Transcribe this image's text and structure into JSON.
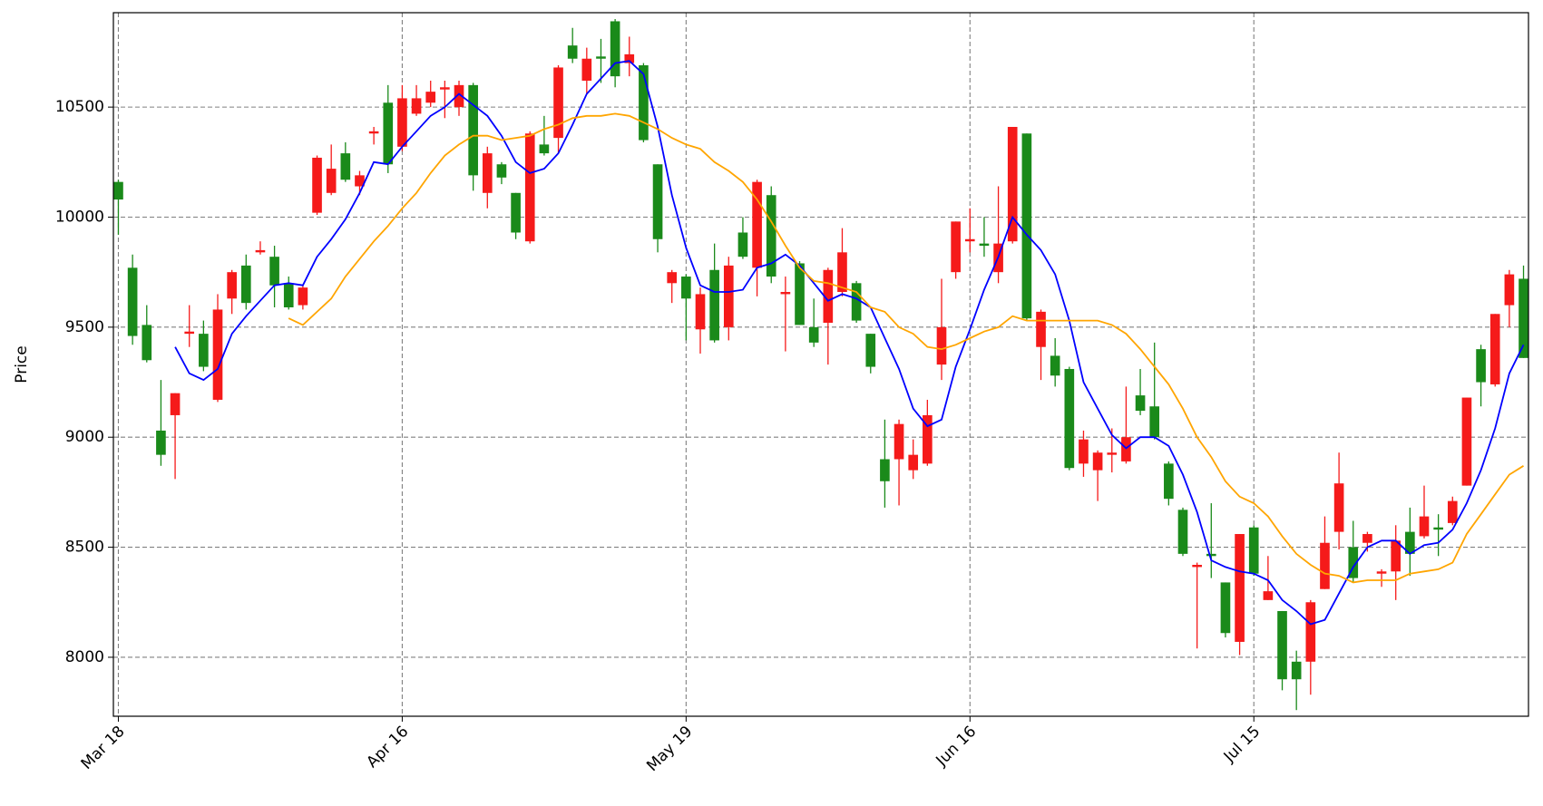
{
  "chart_data": {
    "type": "candlestick",
    "ylabel": "Price",
    "categories": [
      "Mar 18",
      null,
      null,
      null,
      null,
      null,
      null,
      null,
      null,
      null,
      null,
      null,
      null,
      null,
      null,
      null,
      null,
      null,
      null,
      null,
      "Apr 16",
      null,
      null,
      null,
      null,
      null,
      null,
      null,
      null,
      null,
      null,
      null,
      null,
      null,
      null,
      null,
      null,
      null,
      null,
      null,
      "May 19",
      null,
      null,
      null,
      null,
      null,
      null,
      null,
      null,
      null,
      null,
      null,
      null,
      null,
      null,
      null,
      null,
      null,
      null,
      null,
      "Jun 16",
      null,
      null,
      null,
      null,
      null,
      null,
      null,
      null,
      null,
      null,
      null,
      null,
      null,
      null,
      null,
      null,
      null,
      null,
      null,
      "Jul 15",
      null,
      null,
      null,
      null,
      null,
      null,
      null,
      null,
      null,
      null,
      null,
      null,
      null,
      null,
      null,
      null,
      null,
      null,
      null
    ],
    "open": [
      10160,
      9770,
      9510,
      9030,
      9100,
      9470,
      9470,
      9170,
      9630,
      9780,
      9840,
      9820,
      9700,
      9600,
      10020,
      10110,
      10290,
      10140,
      10380,
      10520,
      10320,
      10470,
      10520,
      10580,
      10500,
      10600,
      10110,
      10240,
      10110,
      9890,
      10330,
      10360,
      10780,
      10620,
      10730,
      10890,
      10700,
      10690,
      10240,
      9700,
      9730,
      9490,
      9760,
      9500,
      9930,
      9770,
      10100,
      9650,
      9790,
      9500,
      9520,
      9660,
      9700,
      9470,
      8900,
      8900,
      8850,
      8880,
      9330,
      9750,
      9890,
      9880,
      9750,
      9890,
      10380,
      9410,
      9370,
      9310,
      8880,
      8850,
      8920,
      8890,
      9190,
      9140,
      8880,
      8670,
      8410,
      8470,
      8340,
      8070,
      8590,
      8260,
      8210,
      7980,
      7980,
      8310,
      8570,
      8500,
      8520,
      8380,
      8390,
      8570,
      8550,
      8590,
      8610,
      8780,
      9400,
      9240,
      9600,
      9720
    ],
    "high": [
      10170,
      9830,
      9600,
      9260,
      9200,
      9600,
      9530,
      9650,
      9760,
      9830,
      9890,
      9870,
      9730,
      9690,
      10280,
      10330,
      10340,
      10210,
      10410,
      10600,
      10600,
      10600,
      10620,
      10620,
      10620,
      10610,
      10320,
      10250,
      10110,
      10390,
      10460,
      10690,
      10860,
      10770,
      10810,
      10900,
      10820,
      10700,
      10240,
      9760,
      9740,
      9680,
      9880,
      9820,
      10000,
      10170,
      10140,
      9730,
      9800,
      9630,
      9770,
      9950,
      9710,
      9470,
      9080,
      9080,
      8990,
      9170,
      9720,
      9980,
      10040,
      10000,
      10140,
      10410,
      10380,
      9580,
      9450,
      9320,
      9030,
      8940,
      9040,
      9230,
      9310,
      9430,
      8890,
      8680,
      8430,
      8700,
      8340,
      8560,
      8600,
      8460,
      8210,
      8030,
      8260,
      8640,
      8930,
      8620,
      8570,
      8400,
      8600,
      8680,
      8780,
      8650,
      8730,
      9180,
      9420,
      9560,
      9760,
      9780
    ],
    "low": [
      9920,
      9420,
      9340,
      8870,
      8810,
      9410,
      9300,
      9160,
      9560,
      9580,
      9830,
      9590,
      9580,
      9580,
      10010,
      10100,
      10160,
      10100,
      10330,
      10200,
      10300,
      10460,
      10500,
      10450,
      10460,
      10120,
      10040,
      10150,
      9900,
      9880,
      10280,
      10290,
      10700,
      10560,
      10610,
      10590,
      10640,
      10340,
      9840,
      9610,
      9440,
      9380,
      9430,
      9440,
      9810,
      9640,
      9700,
      9390,
      9510,
      9410,
      9330,
      9640,
      9520,
      9290,
      8680,
      8690,
      8810,
      8870,
      9260,
      9720,
      9840,
      9820,
      9700,
      9880,
      9530,
      9260,
      9230,
      8850,
      8820,
      8710,
      8840,
      8880,
      9100,
      8990,
      8690,
      8460,
      8040,
      8360,
      8090,
      8010,
      8370,
      8260,
      7850,
      7760,
      7830,
      8310,
      8490,
      8340,
      8480,
      8320,
      8260,
      8370,
      8540,
      8460,
      8600,
      8780,
      9140,
      9230,
      9500,
      9360
    ],
    "close": [
      10080,
      9460,
      9350,
      8920,
      9200,
      9480,
      9320,
      9580,
      9750,
      9610,
      9850,
      9690,
      9590,
      9680,
      10270,
      10220,
      10170,
      10190,
      10390,
      10240,
      10540,
      10540,
      10570,
      10590,
      10600,
      10190,
      10290,
      10180,
      9930,
      10380,
      10290,
      10680,
      10720,
      10720,
      10720,
      10640,
      10740,
      10350,
      9900,
      9750,
      9630,
      9650,
      9440,
      9780,
      9820,
      10160,
      9730,
      9660,
      9510,
      9430,
      9760,
      9840,
      9530,
      9320,
      8800,
      9060,
      8920,
      9100,
      9500,
      9980,
      9900,
      9870,
      9880,
      10410,
      9540,
      9570,
      9280,
      8860,
      8990,
      8930,
      8930,
      9000,
      9120,
      9000,
      8720,
      8470,
      8420,
      8460,
      8110,
      8560,
      8380,
      8300,
      7900,
      7900,
      8250,
      8520,
      8790,
      8360,
      8560,
      8390,
      8530,
      8470,
      8640,
      8580,
      8710,
      9180,
      9250,
      9560,
      9740,
      9360
    ],
    "up_color": "#f51a1a",
    "down_color": "#1a8a1a",
    "series": [
      {
        "color": "#0000ff",
        "values": [
          null,
          null,
          null,
          null,
          9410,
          9290,
          9260,
          9310,
          9470,
          9550,
          9620,
          9690,
          9700,
          9690,
          9820,
          9900,
          9990,
          10110,
          10250,
          10240,
          10320,
          10390,
          10460,
          10500,
          10560,
          10510,
          10460,
          10370,
          10250,
          10200,
          10220,
          10290,
          10420,
          10560,
          10630,
          10700,
          10710,
          10650,
          10410,
          10100,
          9860,
          9690,
          9660,
          9660,
          9670,
          9770,
          9790,
          9830,
          9780,
          9700,
          9620,
          9650,
          9630,
          9590,
          9450,
          9310,
          9130,
          9050,
          9080,
          9320,
          9490,
          9670,
          9820,
          10000,
          9920,
          9850,
          9740,
          9530,
          9250,
          9130,
          9010,
          8950,
          9000,
          9000,
          8960,
          8830,
          8660,
          8440,
          8410,
          8390,
          8380,
          8350,
          8260,
          8210,
          8150,
          8170,
          8290,
          8410,
          8500,
          8530,
          8530,
          8470,
          8510,
          8520,
          8580,
          8700,
          8850,
          9040,
          9290,
          9420
        ]
      },
      {
        "color": "#ffa500",
        "values": [
          null,
          null,
          null,
          null,
          null,
          null,
          null,
          null,
          null,
          null,
          null,
          null,
          9540,
          9510,
          9570,
          9630,
          9730,
          9810,
          9890,
          9960,
          10040,
          10110,
          10200,
          10280,
          10330,
          10370,
          10370,
          10350,
          10360,
          10370,
          10400,
          10420,
          10450,
          10460,
          10460,
          10470,
          10460,
          10430,
          10400,
          10360,
          10330,
          10310,
          10250,
          10210,
          10160,
          10080,
          9980,
          9870,
          9770,
          9710,
          9700,
          9680,
          9660,
          9590,
          9570,
          9500,
          9470,
          9410,
          9400,
          9420,
          9450,
          9480,
          9500,
          9550,
          9530,
          9530,
          9530,
          9530,
          9530,
          9530,
          9510,
          9470,
          9400,
          9320,
          9240,
          9130,
          9000,
          8910,
          8800,
          8730,
          8700,
          8640,
          8550,
          8470,
          8420,
          8380,
          8370,
          8340,
          8350,
          8350,
          8350,
          8380,
          8390,
          8400,
          8430,
          8560,
          8650,
          8740,
          8830,
          8870
        ]
      }
    ],
    "ylim": [
      7732,
      10929
    ],
    "yticks": [
      8000,
      8500,
      9000,
      9500,
      10000,
      10500
    ],
    "grid": true
  }
}
